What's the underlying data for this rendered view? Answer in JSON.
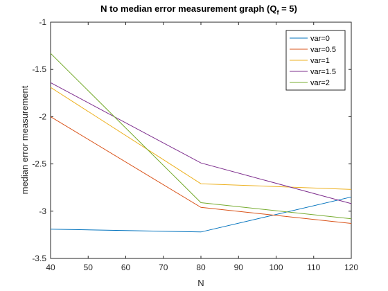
{
  "chart_data": {
    "type": "line",
    "title": {
      "main": "N to median error measurement graph (Q",
      "sub": "f",
      "tail": " = 5)"
    },
    "xlabel": "N",
    "ylabel": "median error measurement",
    "xlim": [
      40,
      120
    ],
    "ylim": [
      -3.5,
      -1
    ],
    "xticks": [
      40,
      50,
      60,
      70,
      80,
      90,
      100,
      110,
      120
    ],
    "yticks": [
      -1,
      -1.5,
      -2,
      -2.5,
      -3,
      -3.5
    ],
    "x": [
      40,
      80,
      120
    ],
    "legend_position": "top-right",
    "grid": false,
    "series": [
      {
        "name": "var=0",
        "color": "#0072BD",
        "values": [
          -3.19,
          -3.22,
          -2.85
        ]
      },
      {
        "name": "var=0.5",
        "color": "#D95319",
        "values": [
          -2.0,
          -2.96,
          -3.13
        ]
      },
      {
        "name": "var=1",
        "color": "#EDB120",
        "values": [
          -1.69,
          -2.71,
          -2.77
        ]
      },
      {
        "name": "var=1.5",
        "color": "#7E2F8E",
        "values": [
          -1.64,
          -2.49,
          -2.92
        ]
      },
      {
        "name": "var=2",
        "color": "#77AC30",
        "values": [
          -1.33,
          -2.91,
          -3.08
        ]
      }
    ]
  }
}
